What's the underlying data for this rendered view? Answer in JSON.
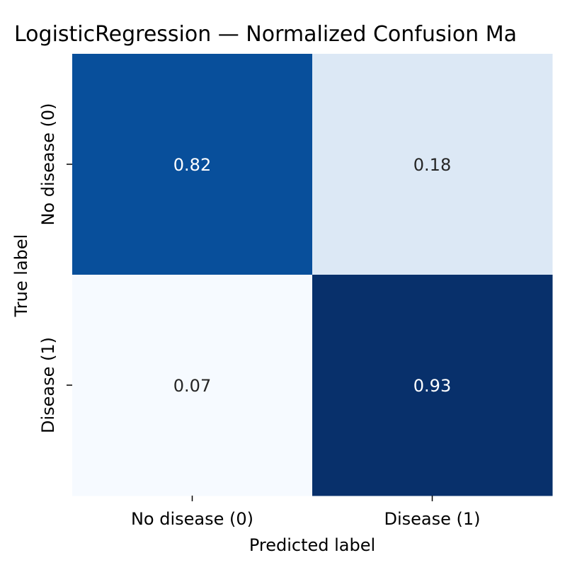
{
  "chart_data": {
    "type": "heatmap",
    "title": "LogisticRegression — Normalized Confusion Ma",
    "xlabel": "Predicted label",
    "ylabel": "True label",
    "x_categories": [
      "No disease (0)",
      "Disease (1)"
    ],
    "y_categories": [
      "No disease (0)",
      "Disease (1)"
    ],
    "values": [
      [
        0.82,
        0.18
      ],
      [
        0.07,
        0.93
      ]
    ],
    "value_labels": [
      [
        "0.82",
        "0.18"
      ],
      [
        "0.07",
        "0.93"
      ]
    ],
    "colormap": "Blues",
    "vmin": 0.07,
    "vmax": 0.93,
    "colorbar": false
  },
  "colors": {
    "cell_00": "#084f9b",
    "cell_01": "#dce8f5",
    "cell_10": "#f6faff",
    "cell_11": "#08306b",
    "text_light": "#ffffff",
    "text_dark": "#262626"
  }
}
